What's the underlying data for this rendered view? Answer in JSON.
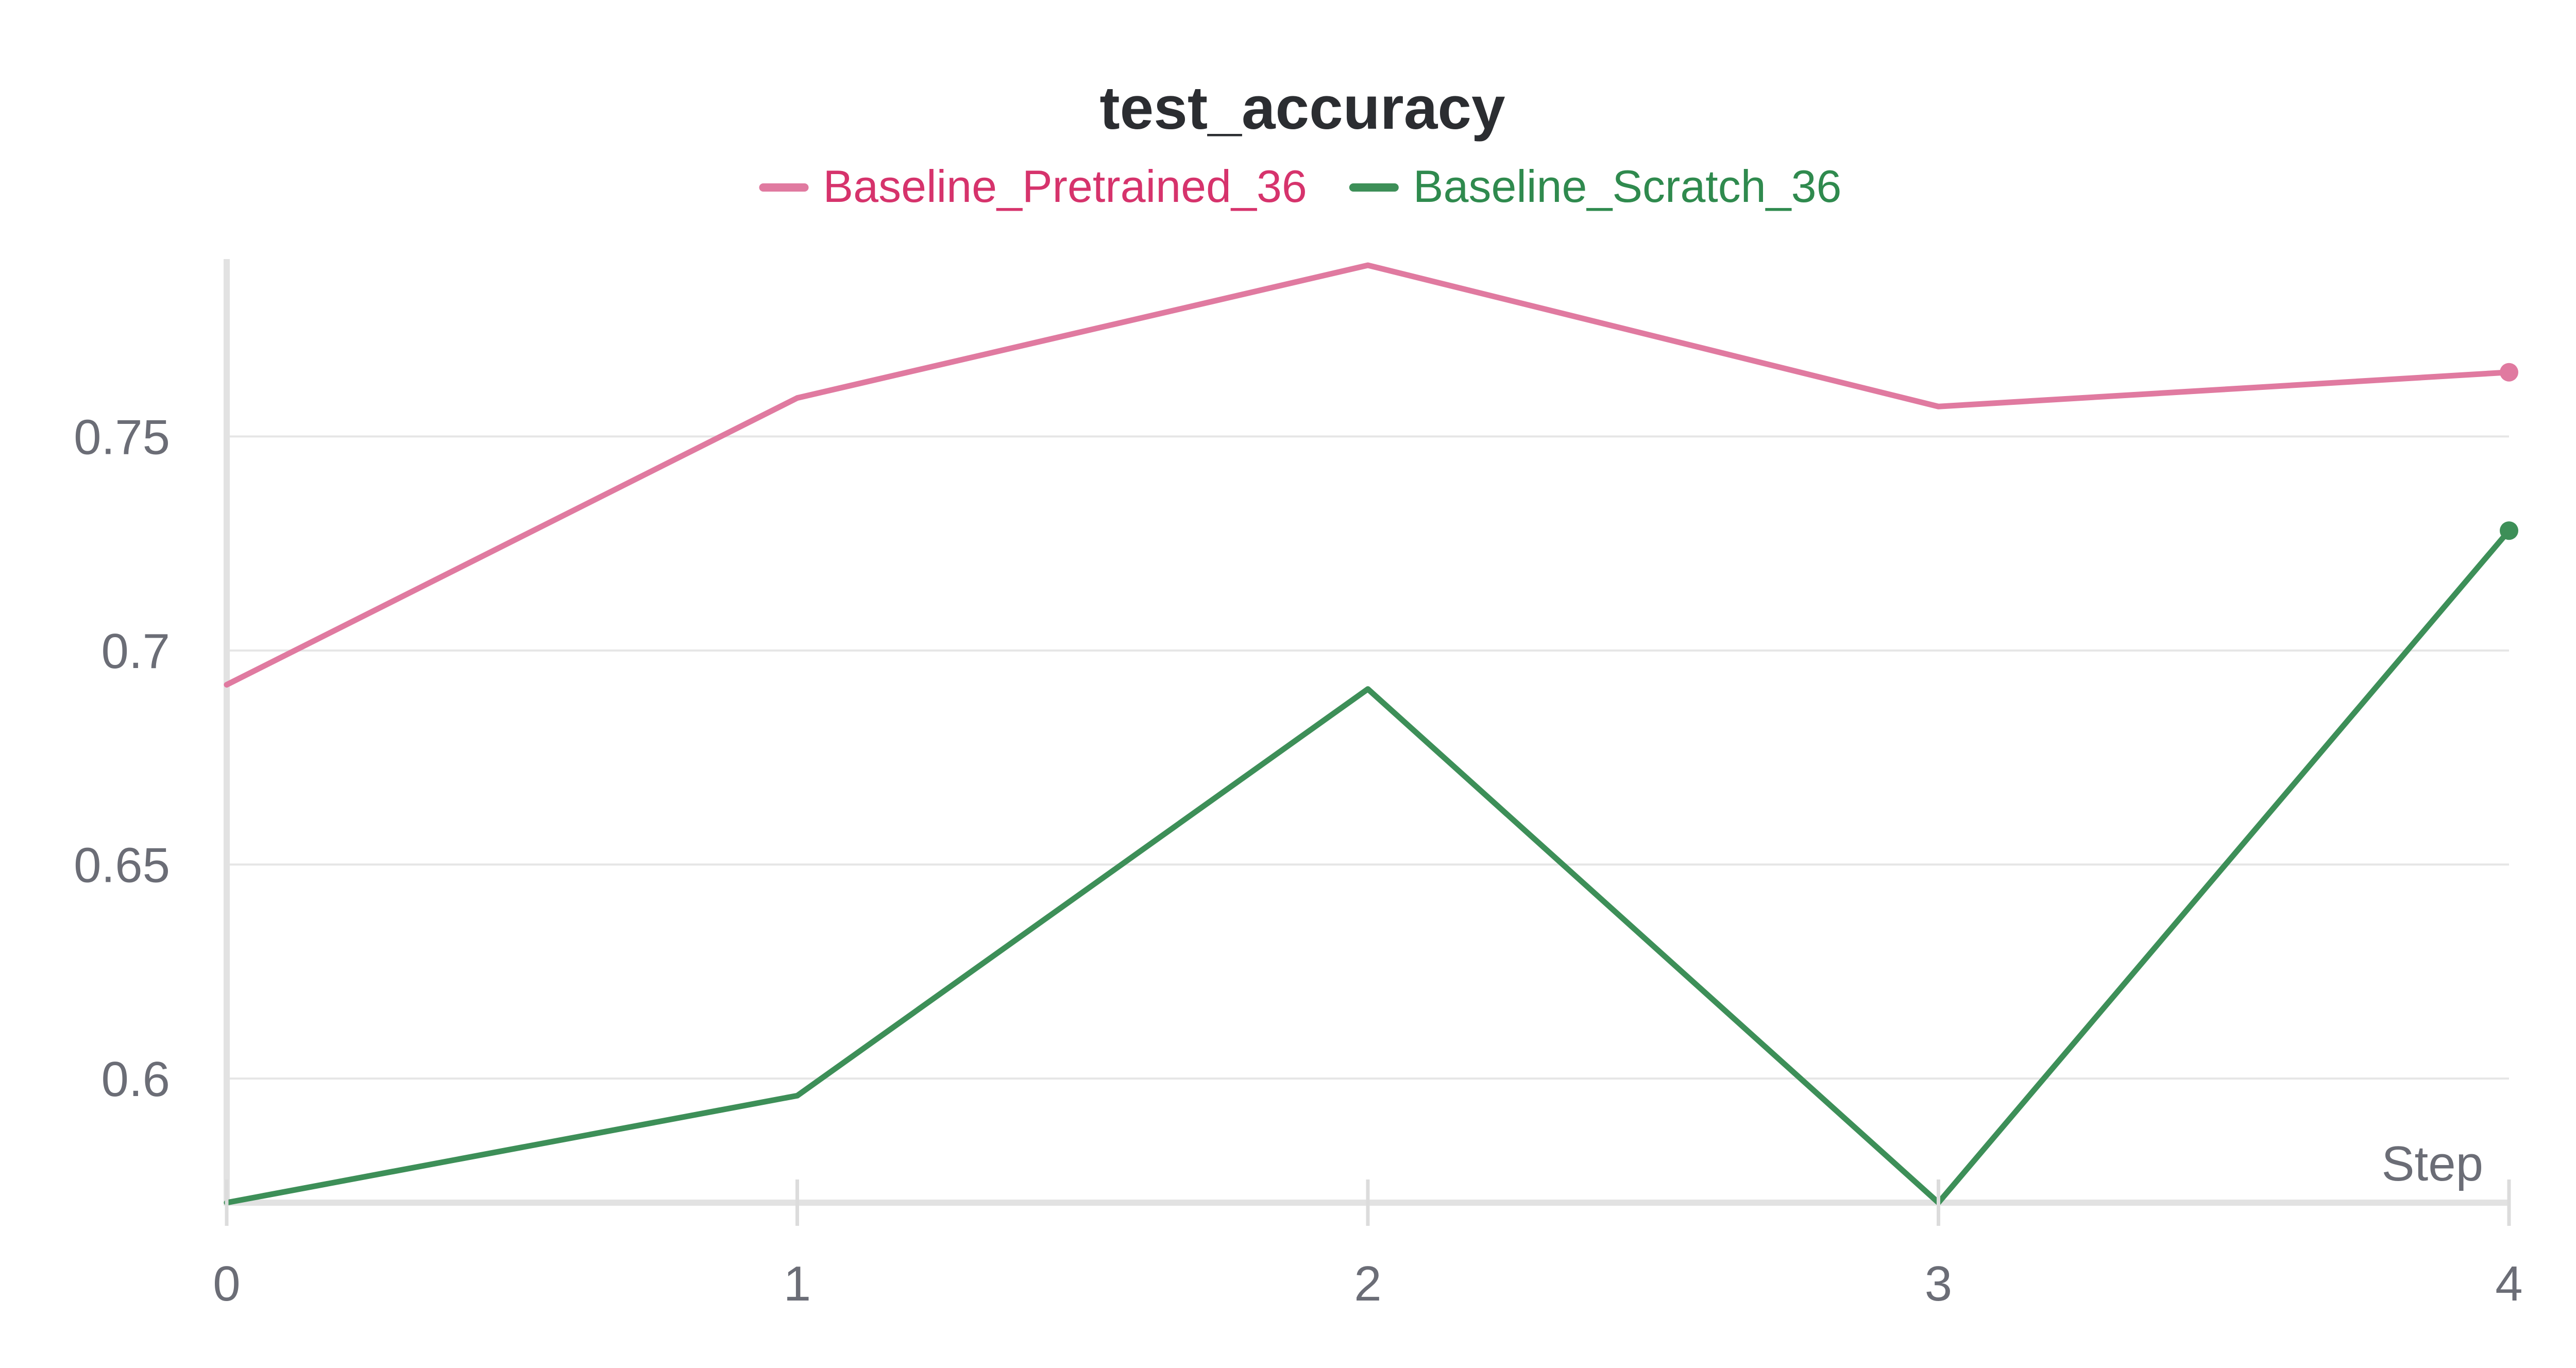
{
  "chart_data": {
    "type": "line",
    "title": "test_accuracy",
    "xlabel": "Step",
    "ylabel": "",
    "x": [
      0,
      1,
      2,
      3,
      4
    ],
    "xlim": [
      0,
      4
    ],
    "ylim": [
      0.571,
      0.79
    ],
    "y_ticks": [
      0.6,
      0.65,
      0.7,
      0.75
    ],
    "y_tick_labels": [
      "0.6",
      "0.65",
      "0.7",
      "0.75"
    ],
    "x_ticks": [
      0,
      1,
      2,
      3,
      4
    ],
    "x_tick_labels": [
      "0",
      "1",
      "2",
      "3",
      "4"
    ],
    "grid": true,
    "legend_position": "top-center",
    "series": [
      {
        "name": "Baseline_Pretrained_36",
        "color": "#e07aa0",
        "legend_text_color": "#d6336c",
        "values": [
          0.692,
          0.759,
          0.79,
          0.757,
          0.765
        ]
      },
      {
        "name": "Baseline_Scratch_36",
        "color": "#3d8f58",
        "legend_text_color": "#2f8a4e",
        "values": [
          0.571,
          0.596,
          0.691,
          0.571,
          0.728
        ]
      }
    ]
  }
}
